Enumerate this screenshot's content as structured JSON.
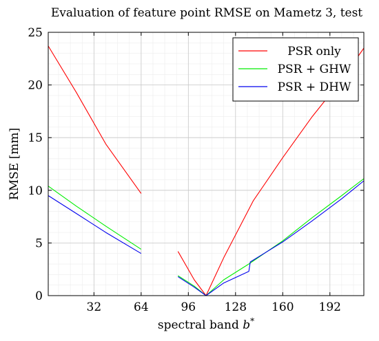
{
  "chart_data": {
    "type": "line",
    "title": "Evaluation of feature point RMSE on Mametz 3, test",
    "xlabel": "spectral band b*",
    "ylabel": "RMSE [mm]",
    "xlim": [
      1,
      215
    ],
    "ylim": [
      0,
      25
    ],
    "xticks": [
      32,
      64,
      96,
      128,
      160,
      192
    ],
    "yticks": [
      0,
      5,
      10,
      15,
      20,
      25
    ],
    "grid": true,
    "legend_position": "top-right",
    "series": [
      {
        "name": "PSR only",
        "color": "#ff0000",
        "segments": [
          [
            [
              1,
              23.7
            ],
            [
              20,
              19.3
            ],
            [
              40,
              14.4
            ],
            [
              64,
              9.7
            ]
          ],
          [
            [
              89,
              4.2
            ],
            [
              100,
              1.5
            ],
            [
              108,
              0.0
            ],
            [
              120,
              3.6
            ],
            [
              140,
              9.0
            ],
            [
              160,
              13.1
            ],
            [
              180,
              17.0
            ],
            [
              200,
              20.5
            ],
            [
              215,
              23.5
            ]
          ]
        ]
      },
      {
        "name": "PSR + GHW",
        "color": "#00ee00",
        "segments": [
          [
            [
              1,
              10.4
            ],
            [
              20,
              8.5
            ],
            [
              40,
              6.6
            ],
            [
              64,
              4.4
            ]
          ],
          [
            [
              89,
              1.9
            ],
            [
              100,
              0.9
            ],
            [
              108,
              0.0
            ],
            [
              120,
              1.5
            ],
            [
              137,
              3.0
            ],
            [
              160,
              5.2
            ],
            [
              180,
              7.4
            ],
            [
              200,
              9.5
            ],
            [
              215,
              11.1
            ]
          ]
        ]
      },
      {
        "name": "PSR + DHW",
        "color": "#0000ee",
        "segments": [
          [
            [
              1,
              9.5
            ],
            [
              20,
              7.8
            ],
            [
              40,
              6.0
            ],
            [
              64,
              4.0
            ]
          ],
          [
            [
              89,
              1.8
            ],
            [
              100,
              0.8
            ],
            [
              108,
              0.0
            ],
            [
              120,
              1.2
            ],
            [
              137,
              2.3
            ],
            [
              138,
              3.2
            ],
            [
              160,
              5.1
            ],
            [
              180,
              7.1
            ],
            [
              200,
              9.2
            ],
            [
              215,
              10.9
            ]
          ]
        ]
      }
    ]
  }
}
